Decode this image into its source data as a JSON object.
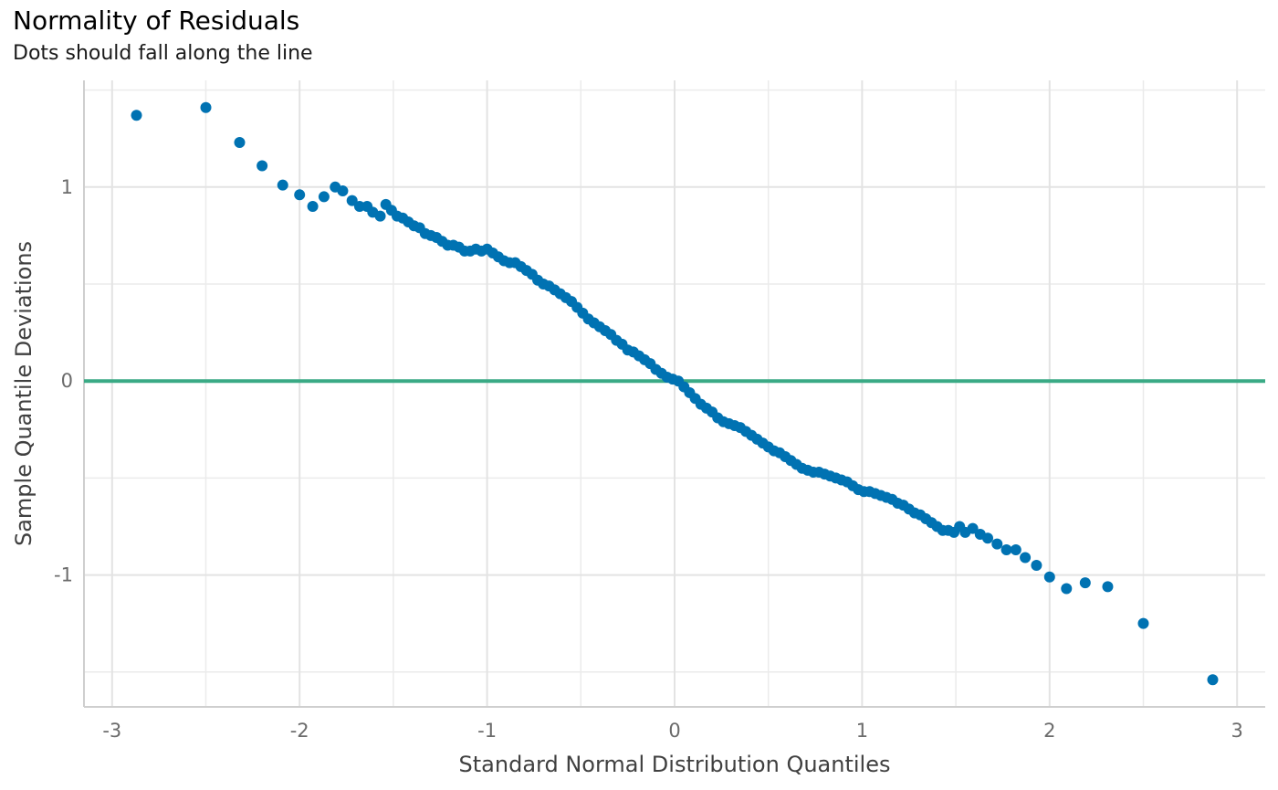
{
  "chart_data": {
    "type": "scatter",
    "title": "Normality of Residuals",
    "subtitle": "Dots should fall along the line",
    "xlabel": "Standard Normal Distribution Quantiles",
    "ylabel": "Sample Quantile Deviations",
    "xlim": [
      -3.15,
      3.15
    ],
    "ylim": [
      -1.68,
      1.55
    ],
    "x_ticks": [
      -3,
      -2,
      -1,
      0,
      1,
      2,
      3
    ],
    "y_ticks": [
      -1,
      0,
      1
    ],
    "x_tick_labels": [
      "-3",
      "-2",
      "-1",
      "0",
      "1",
      "2",
      "3"
    ],
    "y_tick_labels": [
      "-1",
      "0",
      "1"
    ],
    "grid": true,
    "reference_line": {
      "y": 0,
      "color": "#3aaa85"
    },
    "point_color": "#0072b2",
    "points": [
      [
        -2.87,
        1.37
      ],
      [
        -2.5,
        1.41
      ],
      [
        -2.32,
        1.23
      ],
      [
        -2.2,
        1.11
      ],
      [
        -2.09,
        1.01
      ],
      [
        -2.0,
        0.96
      ],
      [
        -1.93,
        0.9
      ],
      [
        -1.87,
        0.95
      ],
      [
        -1.81,
        1.0
      ],
      [
        -1.77,
        0.98
      ],
      [
        -1.72,
        0.93
      ],
      [
        -1.68,
        0.9
      ],
      [
        -1.64,
        0.9
      ],
      [
        -1.61,
        0.87
      ],
      [
        -1.57,
        0.85
      ],
      [
        -1.54,
        0.91
      ],
      [
        -1.51,
        0.88
      ],
      [
        -1.48,
        0.85
      ],
      [
        -1.45,
        0.84
      ],
      [
        -1.42,
        0.82
      ],
      [
        -1.39,
        0.8
      ],
      [
        -1.36,
        0.79
      ],
      [
        -1.33,
        0.76
      ],
      [
        -1.3,
        0.75
      ],
      [
        -1.27,
        0.74
      ],
      [
        -1.24,
        0.72
      ],
      [
        -1.21,
        0.7
      ],
      [
        -1.18,
        0.7
      ],
      [
        -1.15,
        0.69
      ],
      [
        -1.12,
        0.67
      ],
      [
        -1.09,
        0.67
      ],
      [
        -1.06,
        0.68
      ],
      [
        -1.03,
        0.67
      ],
      [
        -1.0,
        0.68
      ],
      [
        -0.97,
        0.66
      ],
      [
        -0.94,
        0.64
      ],
      [
        -0.91,
        0.62
      ],
      [
        -0.88,
        0.61
      ],
      [
        -0.85,
        0.61
      ],
      [
        -0.82,
        0.59
      ],
      [
        -0.79,
        0.57
      ],
      [
        -0.76,
        0.55
      ],
      [
        -0.73,
        0.52
      ],
      [
        -0.7,
        0.5
      ],
      [
        -0.67,
        0.49
      ],
      [
        -0.64,
        0.47
      ],
      [
        -0.61,
        0.45
      ],
      [
        -0.58,
        0.43
      ],
      [
        -0.55,
        0.41
      ],
      [
        -0.52,
        0.38
      ],
      [
        -0.49,
        0.35
      ],
      [
        -0.46,
        0.32
      ],
      [
        -0.43,
        0.3
      ],
      [
        -0.4,
        0.28
      ],
      [
        -0.37,
        0.26
      ],
      [
        -0.34,
        0.24
      ],
      [
        -0.31,
        0.21
      ],
      [
        -0.28,
        0.19
      ],
      [
        -0.25,
        0.16
      ],
      [
        -0.22,
        0.15
      ],
      [
        -0.19,
        0.13
      ],
      [
        -0.16,
        0.11
      ],
      [
        -0.13,
        0.09
      ],
      [
        -0.1,
        0.06
      ],
      [
        -0.07,
        0.04
      ],
      [
        -0.04,
        0.02
      ],
      [
        -0.01,
        0.01
      ],
      [
        0.02,
        -0.0
      ],
      [
        0.05,
        -0.03
      ],
      [
        0.08,
        -0.06
      ],
      [
        0.11,
        -0.09
      ],
      [
        0.14,
        -0.12
      ],
      [
        0.17,
        -0.14
      ],
      [
        0.2,
        -0.16
      ],
      [
        0.23,
        -0.19
      ],
      [
        0.26,
        -0.21
      ],
      [
        0.29,
        -0.22
      ],
      [
        0.32,
        -0.23
      ],
      [
        0.35,
        -0.24
      ],
      [
        0.38,
        -0.26
      ],
      [
        0.41,
        -0.28
      ],
      [
        0.44,
        -0.3
      ],
      [
        0.47,
        -0.32
      ],
      [
        0.5,
        -0.34
      ],
      [
        0.53,
        -0.36
      ],
      [
        0.56,
        -0.37
      ],
      [
        0.59,
        -0.39
      ],
      [
        0.62,
        -0.41
      ],
      [
        0.65,
        -0.43
      ],
      [
        0.68,
        -0.45
      ],
      [
        0.71,
        -0.46
      ],
      [
        0.74,
        -0.47
      ],
      [
        0.77,
        -0.47
      ],
      [
        0.8,
        -0.48
      ],
      [
        0.83,
        -0.49
      ],
      [
        0.86,
        -0.5
      ],
      [
        0.89,
        -0.51
      ],
      [
        0.92,
        -0.52
      ],
      [
        0.95,
        -0.54
      ],
      [
        0.98,
        -0.56
      ],
      [
        1.01,
        -0.57
      ],
      [
        1.04,
        -0.57
      ],
      [
        1.07,
        -0.58
      ],
      [
        1.1,
        -0.59
      ],
      [
        1.13,
        -0.6
      ],
      [
        1.16,
        -0.61
      ],
      [
        1.19,
        -0.63
      ],
      [
        1.22,
        -0.64
      ],
      [
        1.25,
        -0.66
      ],
      [
        1.28,
        -0.68
      ],
      [
        1.31,
        -0.69
      ],
      [
        1.34,
        -0.71
      ],
      [
        1.37,
        -0.73
      ],
      [
        1.4,
        -0.75
      ],
      [
        1.43,
        -0.77
      ],
      [
        1.46,
        -0.77
      ],
      [
        1.49,
        -0.78
      ],
      [
        1.52,
        -0.75
      ],
      [
        1.55,
        -0.78
      ],
      [
        1.59,
        -0.76
      ],
      [
        1.63,
        -0.79
      ],
      [
        1.67,
        -0.81
      ],
      [
        1.72,
        -0.84
      ],
      [
        1.77,
        -0.87
      ],
      [
        1.82,
        -0.87
      ],
      [
        1.87,
        -0.91
      ],
      [
        1.93,
        -0.95
      ],
      [
        2.0,
        -1.01
      ],
      [
        2.09,
        -1.07
      ],
      [
        2.19,
        -1.04
      ],
      [
        2.31,
        -1.06
      ],
      [
        2.5,
        -1.25
      ],
      [
        2.87,
        -1.54
      ]
    ]
  }
}
